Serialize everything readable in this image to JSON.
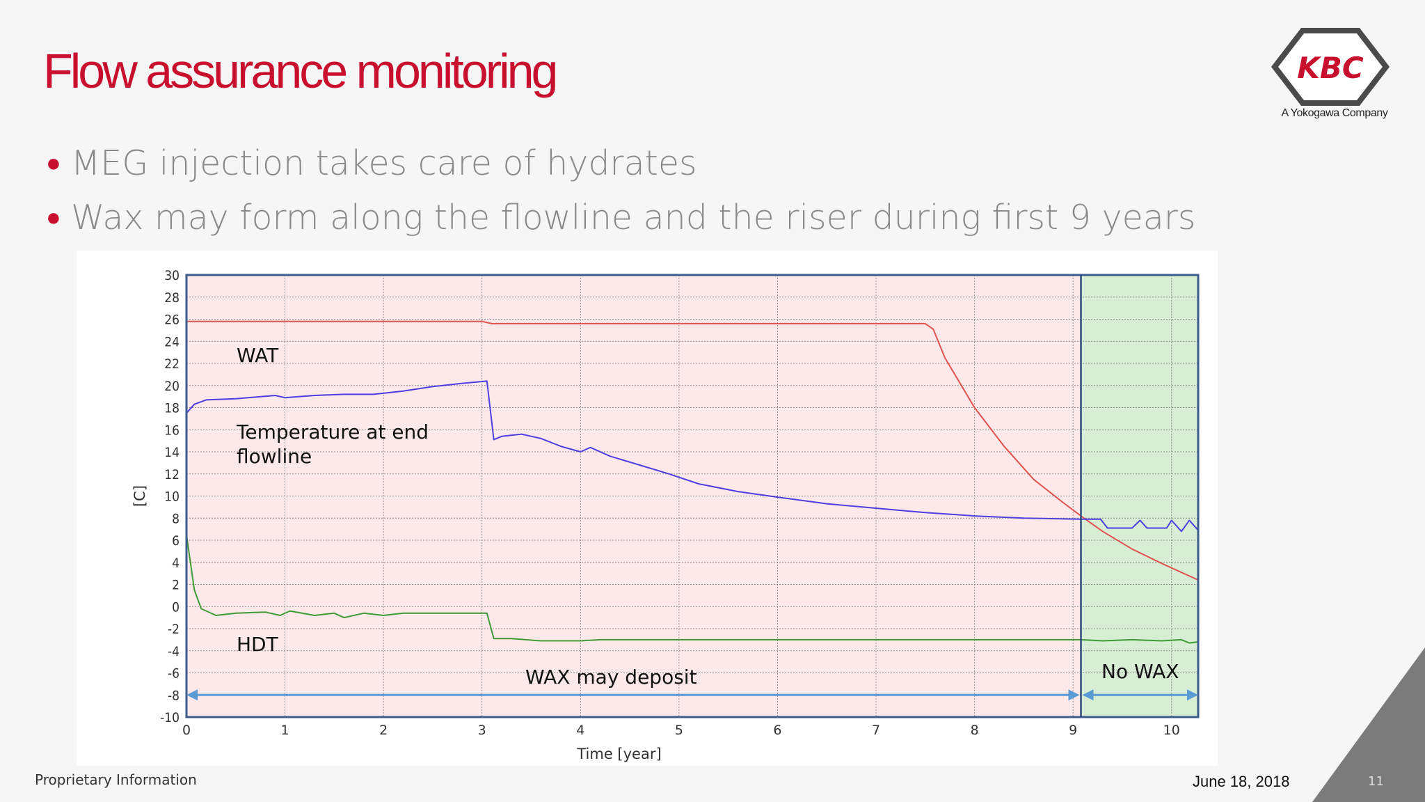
{
  "slide": {
    "title": "Flow assurance monitoring",
    "bullets": [
      "MEG injection takes care of hydrates",
      "Wax may form along the flowline and the riser during first 9 years"
    ],
    "footer_left": "Proprietary Information",
    "date": "June 18, 2018",
    "page_number": "11"
  },
  "logo": {
    "text": "KBC",
    "subtitle": "A Yokogawa Company",
    "color": "#c8102e",
    "frame_color": "#4a4a4a"
  },
  "chart_data": {
    "type": "line",
    "xlabel": "Time [year]",
    "ylabel": "[C]",
    "xlim": [
      0,
      10.27
    ],
    "ylim": [
      -10,
      30
    ],
    "x_ticks": [
      0,
      1,
      2,
      3,
      4,
      5,
      6,
      7,
      8,
      9,
      10
    ],
    "y_ticks": [
      -10,
      -8,
      -6,
      -4,
      -2,
      0,
      2,
      4,
      6,
      8,
      10,
      12,
      14,
      16,
      18,
      20,
      22,
      24,
      26,
      28,
      30
    ],
    "grid": true,
    "region_boundary_x": 9.08,
    "regions": [
      {
        "label": "WAX may deposit",
        "x_start": 0,
        "x_end": 9.08,
        "color": "#fde9ea"
      },
      {
        "label": "No WAX",
        "x_start": 9.08,
        "x_end": 10.27,
        "color": "#d7eed5"
      }
    ],
    "annotations": [
      "WAT",
      "Temperature at end flowline",
      "HDT"
    ],
    "series": [
      {
        "name": "WAT",
        "color": "#e0524f",
        "x": [
          0,
          3.0,
          3.1,
          7.5,
          7.58,
          7.7,
          8.0,
          8.3,
          8.6,
          8.9,
          9.08,
          9.3,
          9.6,
          9.9,
          10.27
        ],
        "y": [
          25.8,
          25.8,
          25.6,
          25.6,
          25.1,
          22.5,
          18.0,
          14.5,
          11.5,
          9.4,
          8.2,
          6.8,
          5.2,
          3.9,
          2.4
        ]
      },
      {
        "name": "Temperature at end flowline",
        "color": "#4d3fe0",
        "x": [
          0,
          0.08,
          0.2,
          0.5,
          0.9,
          1.0,
          1.3,
          1.6,
          1.9,
          2.2,
          2.5,
          2.8,
          3.05,
          3.12,
          3.2,
          3.4,
          3.6,
          3.8,
          4.0,
          4.1,
          4.3,
          4.6,
          4.9,
          5.2,
          5.6,
          6.0,
          6.5,
          7.0,
          7.5,
          8.0,
          8.5,
          9.08,
          9.28,
          9.35,
          9.6,
          9.68,
          9.75,
          9.85,
          9.95,
          10.0,
          10.1,
          10.18,
          10.27
        ],
        "y": [
          17.5,
          18.3,
          18.7,
          18.8,
          19.1,
          18.9,
          19.1,
          19.2,
          19.2,
          19.5,
          19.9,
          20.2,
          20.4,
          15.1,
          15.4,
          15.6,
          15.2,
          14.5,
          14.0,
          14.4,
          13.6,
          12.8,
          12.0,
          11.1,
          10.4,
          9.9,
          9.3,
          8.9,
          8.5,
          8.2,
          8.0,
          7.9,
          7.9,
          7.1,
          7.1,
          7.8,
          7.1,
          7.1,
          7.1,
          7.8,
          6.8,
          7.8,
          6.9
        ]
      },
      {
        "name": "HDT",
        "color": "#3f9b35",
        "x": [
          0,
          0.08,
          0.15,
          0.3,
          0.5,
          0.8,
          0.95,
          1.05,
          1.3,
          1.5,
          1.6,
          1.8,
          2.0,
          2.2,
          2.5,
          2.8,
          3.05,
          3.12,
          3.3,
          3.6,
          4.0,
          4.2,
          5.0,
          6.0,
          7.0,
          8.0,
          9.08,
          9.3,
          9.6,
          9.9,
          10.1,
          10.18,
          10.27
        ],
        "y": [
          6.5,
          1.5,
          -0.2,
          -0.8,
          -0.6,
          -0.5,
          -0.8,
          -0.4,
          -0.8,
          -0.6,
          -1.0,
          -0.6,
          -0.8,
          -0.6,
          -0.6,
          -0.6,
          -0.6,
          -2.9,
          -2.9,
          -3.1,
          -3.1,
          -3.0,
          -3.0,
          -3.0,
          -3.0,
          -3.0,
          -3.0,
          -3.1,
          -3.0,
          -3.1,
          -3.0,
          -3.3,
          -3.2
        ]
      }
    ]
  }
}
